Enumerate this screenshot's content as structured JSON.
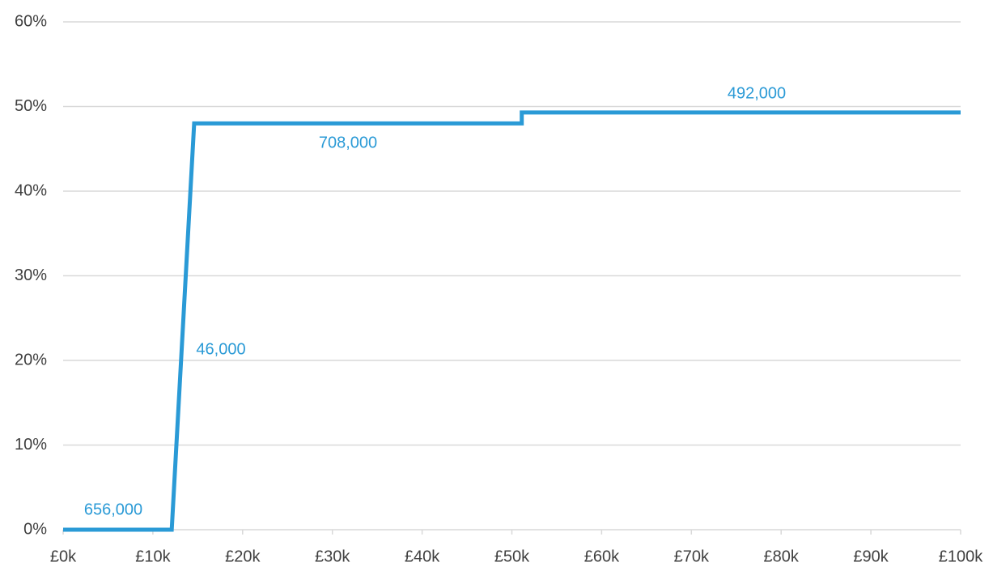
{
  "chart_data": {
    "type": "line",
    "x": [
      0,
      12.1,
      14.6,
      51.1,
      51.1,
      100
    ],
    "values": [
      0,
      0,
      48,
      48,
      49.3,
      49.3
    ],
    "color": "#2a9ad6",
    "xlim": [
      0,
      100
    ],
    "xticks": [
      {
        "value": 0,
        "label": "£0k"
      },
      {
        "value": 10,
        "label": "£10k"
      },
      {
        "value": 20,
        "label": "£20k"
      },
      {
        "value": 30,
        "label": "£30k"
      },
      {
        "value": 40,
        "label": "£40k"
      },
      {
        "value": 50,
        "label": "£50k"
      },
      {
        "value": 60,
        "label": "£60k"
      },
      {
        "value": 70,
        "label": "£70k"
      },
      {
        "value": 80,
        "label": "£80k"
      },
      {
        "value": 90,
        "label": "£90k"
      },
      {
        "value": 100,
        "label": "£100k"
      }
    ],
    "ylim": [
      0,
      60
    ],
    "yticks": [
      {
        "value": 0,
        "label": "0%"
      },
      {
        "value": 10,
        "label": "10%"
      },
      {
        "value": 20,
        "label": "20%"
      },
      {
        "value": 30,
        "label": "30%"
      },
      {
        "value": 40,
        "label": "40%"
      },
      {
        "value": 50,
        "label": "50%"
      },
      {
        "value": 60,
        "label": "60%"
      }
    ],
    "grid": true,
    "annotations": [
      "656,000",
      "46,000",
      "708,000",
      "492,000"
    ]
  }
}
